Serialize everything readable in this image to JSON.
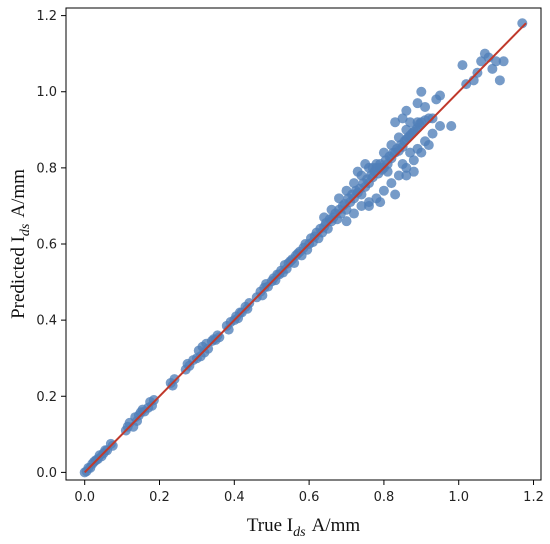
{
  "chart_data": {
    "type": "scatter",
    "xlabel": {
      "main": "True I",
      "sub": "ds",
      "unit": "A/mm"
    },
    "ylabel": {
      "main": "Predicted I",
      "sub": "ds",
      "unit": "A/mm"
    },
    "xlim": [
      -0.05,
      1.22
    ],
    "ylim": [
      -0.02,
      1.22
    ],
    "xticks": [
      "0.0",
      "0.2",
      "0.4",
      "0.6",
      "0.8",
      "1.0",
      "1.2"
    ],
    "yticks": [
      "0.0",
      "0.2",
      "0.4",
      "0.6",
      "0.8",
      "1.0",
      "1.2"
    ],
    "grid": false,
    "point_color": "#4f7fb8",
    "line_color": "#c0392b",
    "fit_line": {
      "x": [
        0.0,
        1.18
      ],
      "y": [
        0.0,
        1.18
      ]
    },
    "points": [
      [
        0.0,
        0.0
      ],
      [
        0.005,
        0.003
      ],
      [
        0.01,
        0.012
      ],
      [
        0.015,
        0.012
      ],
      [
        0.02,
        0.022
      ],
      [
        0.025,
        0.028
      ],
      [
        0.03,
        0.032
      ],
      [
        0.035,
        0.035
      ],
      [
        0.04,
        0.045
      ],
      [
        0.045,
        0.042
      ],
      [
        0.05,
        0.05
      ],
      [
        0.055,
        0.058
      ],
      [
        0.06,
        0.058
      ],
      [
        0.07,
        0.075
      ],
      [
        0.075,
        0.07
      ],
      [
        0.11,
        0.11
      ],
      [
        0.115,
        0.12
      ],
      [
        0.12,
        0.13
      ],
      [
        0.13,
        0.12
      ],
      [
        0.135,
        0.145
      ],
      [
        0.14,
        0.135
      ],
      [
        0.145,
        0.15
      ],
      [
        0.15,
        0.158
      ],
      [
        0.155,
        0.165
      ],
      [
        0.16,
        0.16
      ],
      [
        0.17,
        0.17
      ],
      [
        0.175,
        0.185
      ],
      [
        0.18,
        0.175
      ],
      [
        0.185,
        0.19
      ],
      [
        0.23,
        0.235
      ],
      [
        0.235,
        0.228
      ],
      [
        0.24,
        0.245
      ],
      [
        0.27,
        0.27
      ],
      [
        0.275,
        0.285
      ],
      [
        0.28,
        0.28
      ],
      [
        0.29,
        0.295
      ],
      [
        0.3,
        0.3
      ],
      [
        0.305,
        0.32
      ],
      [
        0.31,
        0.305
      ],
      [
        0.315,
        0.33
      ],
      [
        0.32,
        0.315
      ],
      [
        0.325,
        0.338
      ],
      [
        0.33,
        0.325
      ],
      [
        0.34,
        0.345
      ],
      [
        0.345,
        0.35
      ],
      [
        0.35,
        0.348
      ],
      [
        0.355,
        0.36
      ],
      [
        0.36,
        0.355
      ],
      [
        0.38,
        0.385
      ],
      [
        0.385,
        0.375
      ],
      [
        0.39,
        0.395
      ],
      [
        0.4,
        0.4
      ],
      [
        0.405,
        0.41
      ],
      [
        0.41,
        0.405
      ],
      [
        0.415,
        0.42
      ],
      [
        0.42,
        0.42
      ],
      [
        0.43,
        0.435
      ],
      [
        0.435,
        0.43
      ],
      [
        0.44,
        0.445
      ],
      [
        0.46,
        0.46
      ],
      [
        0.47,
        0.475
      ],
      [
        0.475,
        0.465
      ],
      [
        0.48,
        0.485
      ],
      [
        0.485,
        0.495
      ],
      [
        0.49,
        0.488
      ],
      [
        0.5,
        0.502
      ],
      [
        0.505,
        0.51
      ],
      [
        0.51,
        0.505
      ],
      [
        0.515,
        0.52
      ],
      [
        0.52,
        0.52
      ],
      [
        0.525,
        0.53
      ],
      [
        0.53,
        0.525
      ],
      [
        0.535,
        0.545
      ],
      [
        0.54,
        0.535
      ],
      [
        0.545,
        0.55
      ],
      [
        0.55,
        0.555
      ],
      [
        0.555,
        0.56
      ],
      [
        0.56,
        0.55
      ],
      [
        0.565,
        0.57
      ],
      [
        0.57,
        0.575
      ],
      [
        0.575,
        0.58
      ],
      [
        0.58,
        0.57
      ],
      [
        0.585,
        0.59
      ],
      [
        0.59,
        0.6
      ],
      [
        0.595,
        0.585
      ],
      [
        0.6,
        0.6
      ],
      [
        0.605,
        0.615
      ],
      [
        0.61,
        0.605
      ],
      [
        0.615,
        0.62
      ],
      [
        0.62,
        0.63
      ],
      [
        0.625,
        0.615
      ],
      [
        0.63,
        0.64
      ],
      [
        0.635,
        0.63
      ],
      [
        0.64,
        0.645
      ],
      [
        0.645,
        0.655
      ],
      [
        0.65,
        0.64
      ],
      [
        0.655,
        0.665
      ],
      [
        0.66,
        0.66
      ],
      [
        0.665,
        0.67
      ],
      [
        0.67,
        0.68
      ],
      [
        0.675,
        0.665
      ],
      [
        0.68,
        0.69
      ],
      [
        0.685,
        0.68
      ],
      [
        0.69,
        0.7
      ],
      [
        0.695,
        0.705
      ],
      [
        0.7,
        0.69
      ],
      [
        0.705,
        0.72
      ],
      [
        0.71,
        0.71
      ],
      [
        0.715,
        0.73
      ],
      [
        0.72,
        0.72
      ],
      [
        0.725,
        0.74
      ],
      [
        0.73,
        0.735
      ],
      [
        0.735,
        0.745
      ],
      [
        0.74,
        0.73
      ],
      [
        0.745,
        0.76
      ],
      [
        0.75,
        0.75
      ],
      [
        0.755,
        0.77
      ],
      [
        0.76,
        0.76
      ],
      [
        0.765,
        0.78
      ],
      [
        0.77,
        0.775
      ],
      [
        0.775,
        0.79
      ],
      [
        0.78,
        0.8
      ],
      [
        0.785,
        0.785
      ],
      [
        0.79,
        0.81
      ],
      [
        0.795,
        0.795
      ],
      [
        0.8,
        0.8
      ],
      [
        0.805,
        0.82
      ],
      [
        0.81,
        0.81
      ],
      [
        0.815,
        0.83
      ],
      [
        0.82,
        0.825
      ],
      [
        0.825,
        0.84
      ],
      [
        0.83,
        0.84
      ],
      [
        0.835,
        0.85
      ],
      [
        0.84,
        0.845
      ],
      [
        0.845,
        0.86
      ],
      [
        0.85,
        0.855
      ],
      [
        0.855,
        0.87
      ],
      [
        0.86,
        0.875
      ],
      [
        0.865,
        0.88
      ],
      [
        0.87,
        0.885
      ],
      [
        0.875,
        0.89
      ],
      [
        0.88,
        0.895
      ],
      [
        0.885,
        0.9
      ],
      [
        0.89,
        0.905
      ],
      [
        0.895,
        0.915
      ],
      [
        0.9,
        0.92
      ],
      [
        0.91,
        0.925
      ],
      [
        0.92,
        0.93
      ],
      [
        0.64,
        0.67
      ],
      [
        0.66,
        0.69
      ],
      [
        0.68,
        0.72
      ],
      [
        0.7,
        0.74
      ],
      [
        0.72,
        0.76
      ],
      [
        0.74,
        0.78
      ],
      [
        0.76,
        0.8
      ],
      [
        0.78,
        0.81
      ],
      [
        0.8,
        0.84
      ],
      [
        0.82,
        0.86
      ],
      [
        0.84,
        0.88
      ],
      [
        0.86,
        0.9
      ],
      [
        0.7,
        0.66
      ],
      [
        0.72,
        0.68
      ],
      [
        0.74,
        0.7
      ],
      [
        0.76,
        0.71
      ],
      [
        0.78,
        0.72
      ],
      [
        0.8,
        0.74
      ],
      [
        0.82,
        0.76
      ],
      [
        0.84,
        0.78
      ],
      [
        0.86,
        0.8
      ],
      [
        0.88,
        0.82
      ],
      [
        0.9,
        0.84
      ],
      [
        0.92,
        0.86
      ],
      [
        0.73,
        0.79
      ],
      [
        0.75,
        0.81
      ],
      [
        0.77,
        0.8
      ],
      [
        0.79,
        0.8
      ],
      [
        0.81,
        0.79
      ],
      [
        0.76,
        0.7
      ],
      [
        0.79,
        0.71
      ],
      [
        0.83,
        0.73
      ],
      [
        0.86,
        0.78
      ],
      [
        0.88,
        0.79
      ],
      [
        0.85,
        0.81
      ],
      [
        0.87,
        0.84
      ],
      [
        0.89,
        0.85
      ],
      [
        0.91,
        0.87
      ],
      [
        0.93,
        0.89
      ],
      [
        0.83,
        0.92
      ],
      [
        0.85,
        0.93
      ],
      [
        0.87,
        0.92
      ],
      [
        0.89,
        0.92
      ],
      [
        0.86,
        0.95
      ],
      [
        0.89,
        0.97
      ],
      [
        0.9,
        1.0
      ],
      [
        0.91,
        0.96
      ],
      [
        0.93,
        0.93
      ],
      [
        0.95,
        0.91
      ],
      [
        0.98,
        0.91
      ],
      [
        0.94,
        0.98
      ],
      [
        0.95,
        0.99
      ],
      [
        1.01,
        1.07
      ],
      [
        1.02,
        1.02
      ],
      [
        1.04,
        1.03
      ],
      [
        1.05,
        1.05
      ],
      [
        1.06,
        1.08
      ],
      [
        1.07,
        1.1
      ],
      [
        1.08,
        1.09
      ],
      [
        1.09,
        1.06
      ],
      [
        1.1,
        1.08
      ],
      [
        1.11,
        1.03
      ],
      [
        1.12,
        1.08
      ],
      [
        1.17,
        1.18
      ]
    ]
  }
}
